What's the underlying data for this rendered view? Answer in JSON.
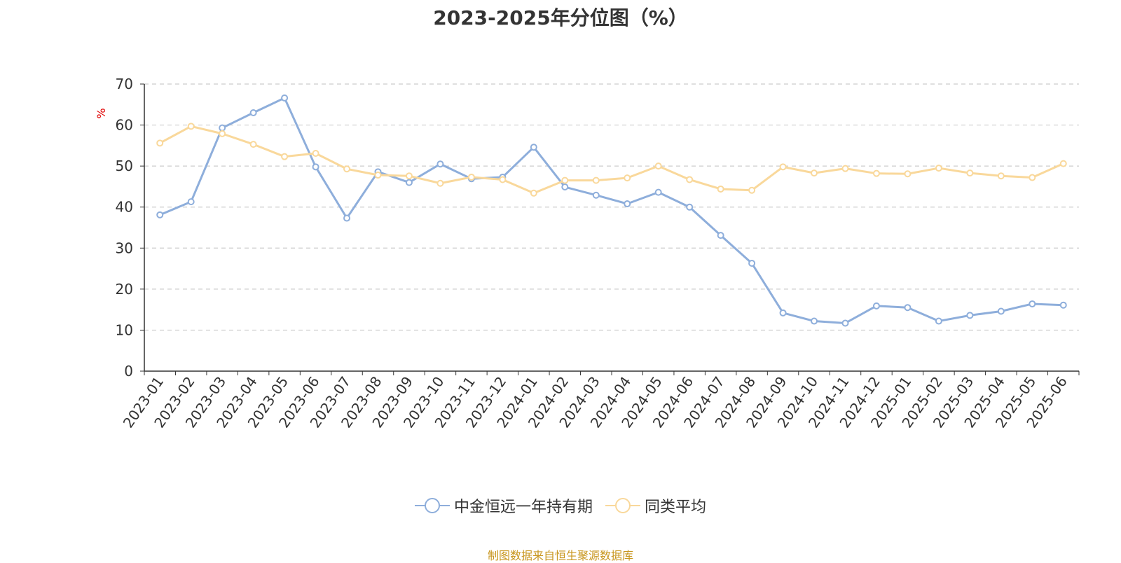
{
  "chart_data": {
    "type": "line",
    "title": "2023-2025年分位图（%）",
    "ylabel": "%",
    "xlabel": "",
    "ylim": [
      0,
      70
    ],
    "yticks": [
      0,
      10,
      20,
      30,
      40,
      50,
      60,
      70
    ],
    "grid": true,
    "legend_position": "bottom",
    "categories": [
      "2023-01",
      "2023-02",
      "2023-03",
      "2023-04",
      "2023-05",
      "2023-06",
      "2023-07",
      "2023-08",
      "2023-09",
      "2023-10",
      "2023-11",
      "2023-12",
      "2024-01",
      "2024-02",
      "2024-03",
      "2024-04",
      "2024-05",
      "2024-06",
      "2024-07",
      "2024-08",
      "2024-09",
      "2024-10",
      "2024-11",
      "2024-12",
      "2025-01",
      "2025-02",
      "2025-03",
      "2025-04",
      "2025-05",
      "2025-06"
    ],
    "series": [
      {
        "name": "中金恒远一年持有期",
        "color": "#8eaedb",
        "values": [
          38.1,
          41.3,
          59.3,
          63.0,
          66.6,
          49.8,
          37.3,
          48.6,
          46.0,
          50.5,
          46.9,
          47.3,
          54.6,
          44.9,
          42.9,
          40.8,
          43.6,
          40.0,
          33.1,
          26.3,
          14.2,
          12.2,
          11.7,
          15.9,
          15.5,
          12.2,
          13.6,
          14.6,
          16.4,
          16.1
        ]
      },
      {
        "name": "同类平均",
        "color": "#f9d89b",
        "values": [
          55.6,
          59.7,
          57.9,
          55.3,
          52.3,
          53.1,
          49.3,
          47.8,
          47.6,
          45.8,
          47.3,
          46.7,
          43.4,
          46.5,
          46.5,
          47.1,
          50.0,
          46.7,
          44.4,
          44.1,
          49.8,
          48.3,
          49.4,
          48.2,
          48.1,
          49.5,
          48.3,
          47.6,
          47.2,
          50.6
        ]
      }
    ],
    "source_note": "制图数据来自恒生聚源数据库"
  }
}
